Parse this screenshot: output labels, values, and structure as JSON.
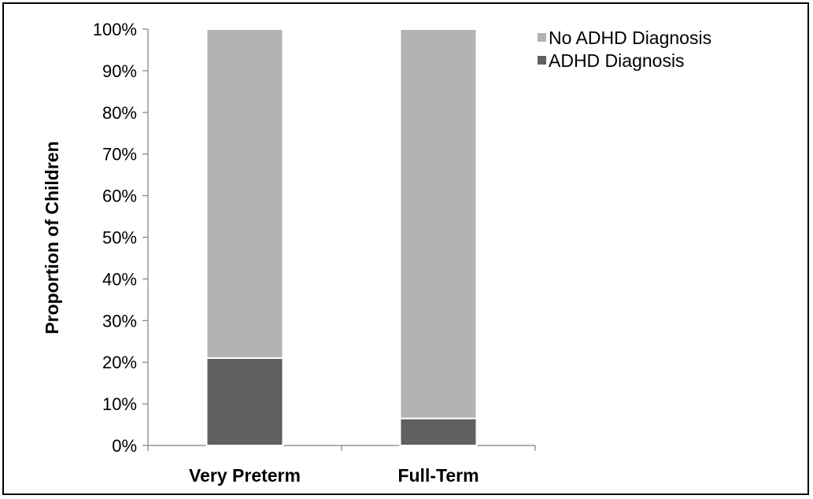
{
  "chart_data": {
    "type": "bar",
    "stacked": true,
    "categories": [
      "Very Preterm",
      "Full-Term"
    ],
    "series": [
      {
        "name": "ADHD Diagnosis",
        "values": [
          21,
          6.5
        ],
        "color": "#606060"
      },
      {
        "name": "No ADHD Diagnosis",
        "values": [
          79,
          93.5
        ],
        "color": "#b3b3b3"
      }
    ],
    "ylabel": "Proportion of Children",
    "xlabel": "",
    "ylim": [
      0,
      100
    ],
    "yticks": [
      "0%",
      "10%",
      "20%",
      "30%",
      "40%",
      "50%",
      "60%",
      "70%",
      "80%",
      "90%",
      "100%"
    ],
    "legend": {
      "position": "top-right",
      "entries": [
        {
          "label": "No ADHD Diagnosis",
          "color": "#b3b3b3"
        },
        {
          "label": "ADHD Diagnosis",
          "color": "#606060"
        }
      ]
    },
    "grid": false
  }
}
